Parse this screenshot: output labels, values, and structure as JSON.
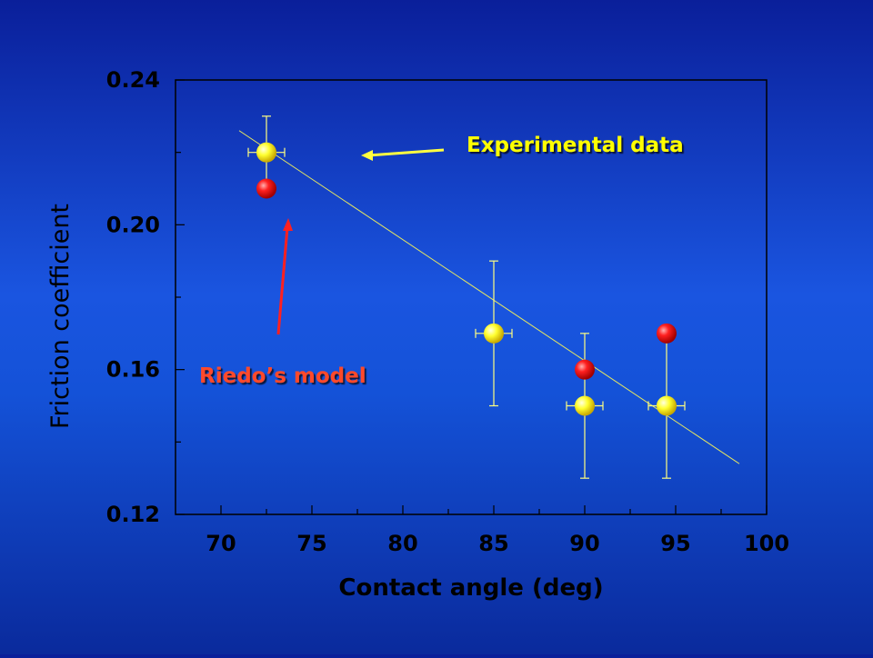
{
  "chart_data": {
    "type": "scatter",
    "xlabel": "Contact angle (deg)",
    "ylabel": "Friction coefficient",
    "xlim": [
      67.5,
      100
    ],
    "ylim": [
      0.12,
      0.24
    ],
    "x_ticks": [
      70,
      75,
      80,
      85,
      90,
      95,
      100
    ],
    "x_tick_labels": [
      "70",
      "75",
      "80",
      "85",
      "90",
      "95",
      "100"
    ],
    "y_ticks": [
      0.12,
      0.16,
      0.2,
      0.24
    ],
    "y_tick_labels": [
      "0.12",
      "0.16",
      "0.20",
      "0.24"
    ],
    "grid": false,
    "series": [
      {
        "name": "Experimental data",
        "color": "#ffff00",
        "points": [
          {
            "x": 72.5,
            "y": 0.22,
            "xerr": 1.0,
            "yerr": 0.01
          },
          {
            "x": 85.0,
            "y": 0.17,
            "xerr": 1.0,
            "yerr": 0.02
          },
          {
            "x": 90.0,
            "y": 0.15,
            "xerr": 1.0,
            "yerr": 0.02
          },
          {
            "x": 94.5,
            "y": 0.15,
            "xerr": 1.0,
            "yerr": 0.02
          }
        ]
      },
      {
        "name": "Riedo’s model",
        "color": "#ff0000",
        "points": [
          {
            "x": 72.5,
            "y": 0.21
          },
          {
            "x": 90.0,
            "y": 0.16
          },
          {
            "x": 94.5,
            "y": 0.17
          }
        ]
      }
    ],
    "fit_line": {
      "color": "#e8e860",
      "x": [
        71.0,
        98.5
      ],
      "y": [
        0.226,
        0.134
      ]
    },
    "annotations": [
      {
        "text": "Experimental data",
        "color": "#ffff00",
        "arrow_color": "#ffff40"
      },
      {
        "text": "Riedo’s model",
        "color": "#ff4a2a",
        "arrow_color": "#ff2020"
      }
    ]
  }
}
